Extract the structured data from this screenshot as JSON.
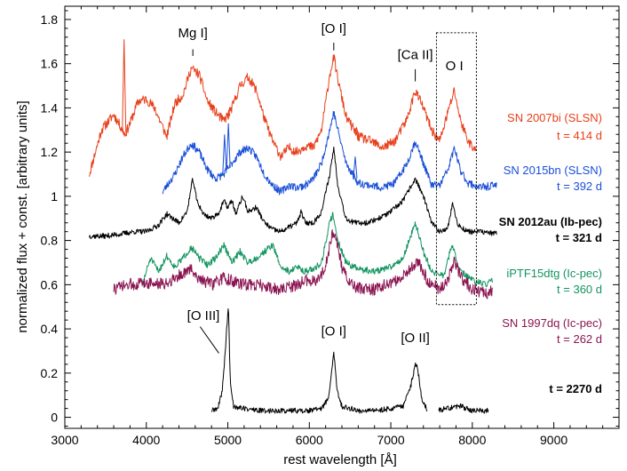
{
  "chart_data": {
    "type": "line",
    "title": "",
    "xlabel": "rest wavelength [Å]",
    "ylabel": "normalized flux + const. [arbitrary units]",
    "xlim": [
      3000,
      9800
    ],
    "ylim": [
      -0.05,
      1.86
    ],
    "x_ticks": [
      3000,
      4000,
      5000,
      6000,
      7000,
      8000,
      9000
    ],
    "y_ticks": [
      0,
      0.2,
      0.4,
      0.6,
      0.8,
      1,
      1.2,
      1.4,
      1.6,
      1.8
    ],
    "x_tick_labels": [
      "3000",
      "4000",
      "5000",
      "6000",
      "7000",
      "8000",
      "9000"
    ],
    "y_tick_labels": [
      "0",
      "0.2",
      "0.4",
      "0.6",
      "0.8",
      "1",
      "1.2",
      "1.4",
      "1.6",
      "1.8"
    ],
    "series": [
      {
        "name": "SN 2007bi (SLSN)",
        "label_line1": "SN 2007bi (SLSN)",
        "label_line2": "t = 414 d",
        "color": "#e8401c",
        "bold": false,
        "seed": 11,
        "noise": 0.022,
        "points": [
          [
            3300,
            1.1
          ],
          [
            3450,
            1.3
          ],
          [
            3600,
            1.37
          ],
          [
            3740,
            1.28
          ],
          [
            3800,
            1.33
          ],
          [
            3900,
            1.43
          ],
          [
            4000,
            1.44
          ],
          [
            4100,
            1.4
          ],
          [
            4250,
            1.27
          ],
          [
            4350,
            1.42
          ],
          [
            4450,
            1.46
          ],
          [
            4550,
            1.58
          ],
          [
            4650,
            1.55
          ],
          [
            4750,
            1.43
          ],
          [
            4850,
            1.38
          ],
          [
            4950,
            1.34
          ],
          [
            5050,
            1.4
          ],
          [
            5150,
            1.5
          ],
          [
            5250,
            1.54
          ],
          [
            5350,
            1.48
          ],
          [
            5450,
            1.35
          ],
          [
            5550,
            1.25
          ],
          [
            5650,
            1.18
          ],
          [
            5750,
            1.22
          ],
          [
            5850,
            1.2
          ],
          [
            5950,
            1.23
          ],
          [
            6050,
            1.22
          ],
          [
            6150,
            1.3
          ],
          [
            6250,
            1.55
          ],
          [
            6300,
            1.63
          ],
          [
            6350,
            1.53
          ],
          [
            6450,
            1.36
          ],
          [
            6600,
            1.27
          ],
          [
            6750,
            1.25
          ],
          [
            6900,
            1.22
          ],
          [
            7050,
            1.25
          ],
          [
            7200,
            1.35
          ],
          [
            7300,
            1.48
          ],
          [
            7400,
            1.4
          ],
          [
            7500,
            1.3
          ],
          [
            7600,
            1.25
          ],
          [
            7700,
            1.38
          ],
          [
            7780,
            1.48
          ],
          [
            7850,
            1.35
          ],
          [
            7950,
            1.25
          ],
          [
            8050,
            1.2
          ]
        ],
        "spikes": [
          [
            3727,
            1.71
          ],
          [
            4100,
            1.4
          ],
          [
            5005,
            1.35
          ],
          [
            6580,
            1.31
          ]
        ]
      },
      {
        "name": "SN 2015bn (SLSN)",
        "label_line1": "SN 2015bn (SLSN)",
        "label_line2": "t = 392 d",
        "color": "#1a4fd8",
        "bold": false,
        "seed": 23,
        "noise": 0.018,
        "points": [
          [
            4200,
            1.02
          ],
          [
            4350,
            1.1
          ],
          [
            4450,
            1.18
          ],
          [
            4550,
            1.24
          ],
          [
            4650,
            1.2
          ],
          [
            4750,
            1.12
          ],
          [
            4850,
            1.08
          ],
          [
            4950,
            1.1
          ],
          [
            5050,
            1.15
          ],
          [
            5150,
            1.2
          ],
          [
            5250,
            1.22
          ],
          [
            5350,
            1.18
          ],
          [
            5450,
            1.1
          ],
          [
            5550,
            1.05
          ],
          [
            5650,
            1.02
          ],
          [
            5750,
            1.05
          ],
          [
            5850,
            1.04
          ],
          [
            5950,
            1.05
          ],
          [
            6050,
            1.08
          ],
          [
            6150,
            1.15
          ],
          [
            6250,
            1.3
          ],
          [
            6300,
            1.38
          ],
          [
            6350,
            1.3
          ],
          [
            6450,
            1.15
          ],
          [
            6600,
            1.06
          ],
          [
            6750,
            1.05
          ],
          [
            6900,
            1.04
          ],
          [
            7050,
            1.06
          ],
          [
            7200,
            1.15
          ],
          [
            7300,
            1.25
          ],
          [
            7400,
            1.15
          ],
          [
            7500,
            1.05
          ],
          [
            7600,
            1.05
          ],
          [
            7700,
            1.12
          ],
          [
            7780,
            1.22
          ],
          [
            7850,
            1.12
          ],
          [
            7950,
            1.06
          ],
          [
            8100,
            1.04
          ],
          [
            8300,
            1.05
          ]
        ],
        "spikes": [
          [
            4960,
            1.28
          ],
          [
            5007,
            1.33
          ],
          [
            6563,
            1.18
          ]
        ]
      },
      {
        "name": "SN 2012au (Ib-pec)",
        "label_line1": "SN 2012au (Ib-pec)",
        "label_line2": "t =  321 d",
        "color": "#000000",
        "bold": true,
        "seed": 37,
        "noise": 0.012,
        "points": [
          [
            3300,
            0.82
          ],
          [
            3500,
            0.82
          ],
          [
            3700,
            0.83
          ],
          [
            3850,
            0.84
          ],
          [
            4000,
            0.84
          ],
          [
            4150,
            0.87
          ],
          [
            4250,
            0.92
          ],
          [
            4400,
            0.88
          ],
          [
            4500,
            0.93
          ],
          [
            4570,
            1.08
          ],
          [
            4620,
            0.98
          ],
          [
            4700,
            0.92
          ],
          [
            4800,
            0.9
          ],
          [
            4900,
            0.93
          ],
          [
            4950,
            0.98
          ],
          [
            5000,
            0.95
          ],
          [
            5050,
            0.98
          ],
          [
            5100,
            0.92
          ],
          [
            5180,
            1.0
          ],
          [
            5250,
            0.93
          ],
          [
            5350,
            0.95
          ],
          [
            5450,
            0.88
          ],
          [
            5550,
            0.85
          ],
          [
            5650,
            0.84
          ],
          [
            5750,
            0.86
          ],
          [
            5850,
            0.88
          ],
          [
            5900,
            0.93
          ],
          [
            5950,
            0.88
          ],
          [
            6050,
            0.88
          ],
          [
            6150,
            0.93
          ],
          [
            6250,
            1.1
          ],
          [
            6300,
            1.22
          ],
          [
            6350,
            1.05
          ],
          [
            6450,
            0.9
          ],
          [
            6550,
            0.88
          ],
          [
            6700,
            0.88
          ],
          [
            6850,
            0.9
          ],
          [
            7000,
            0.93
          ],
          [
            7150,
            0.98
          ],
          [
            7300,
            1.08
          ],
          [
            7400,
            1.0
          ],
          [
            7500,
            0.88
          ],
          [
            7600,
            0.84
          ],
          [
            7700,
            0.86
          ],
          [
            7760,
            0.97
          ],
          [
            7820,
            0.87
          ],
          [
            7950,
            0.84
          ],
          [
            8100,
            0.84
          ],
          [
            8300,
            0.83
          ]
        ],
        "spikes": []
      },
      {
        "name": "iPTF15dtg (Ic-pec)",
        "label_line1": "iPTF15dtg (Ic-pec)",
        "label_line2": "t = 360 d",
        "color": "#139460",
        "bold": false,
        "seed": 51,
        "noise": 0.015,
        "points": [
          [
            3950,
            0.6
          ],
          [
            4050,
            0.72
          ],
          [
            4150,
            0.66
          ],
          [
            4250,
            0.73
          ],
          [
            4350,
            0.68
          ],
          [
            4450,
            0.72
          ],
          [
            4550,
            0.77
          ],
          [
            4650,
            0.72
          ],
          [
            4750,
            0.69
          ],
          [
            4850,
            0.72
          ],
          [
            4950,
            0.78
          ],
          [
            5050,
            0.7
          ],
          [
            5150,
            0.75
          ],
          [
            5250,
            0.7
          ],
          [
            5350,
            0.72
          ],
          [
            5450,
            0.75
          ],
          [
            5550,
            0.78
          ],
          [
            5650,
            0.68
          ],
          [
            5750,
            0.66
          ],
          [
            5850,
            0.68
          ],
          [
            5950,
            0.66
          ],
          [
            6050,
            0.67
          ],
          [
            6150,
            0.7
          ],
          [
            6250,
            0.88
          ],
          [
            6290,
            0.92
          ],
          [
            6350,
            0.8
          ],
          [
            6450,
            0.7
          ],
          [
            6600,
            0.67
          ],
          [
            6800,
            0.66
          ],
          [
            7000,
            0.68
          ],
          [
            7150,
            0.72
          ],
          [
            7300,
            0.88
          ],
          [
            7400,
            0.75
          ],
          [
            7500,
            0.66
          ],
          [
            7650,
            0.64
          ],
          [
            7750,
            0.78
          ],
          [
            7850,
            0.66
          ],
          [
            8000,
            0.62
          ],
          [
            8150,
            0.6
          ],
          [
            8250,
            0.62
          ]
        ],
        "spikes": []
      },
      {
        "name": "SN 1997dq (Ic-pec)",
        "label_line1": "SN 1997dq (Ic-pec)",
        "label_line2": "t = 262 d",
        "color": "#8b1552",
        "bold": false,
        "seed": 73,
        "noise": 0.028,
        "points": [
          [
            3600,
            0.58
          ],
          [
            3800,
            0.6
          ],
          [
            4000,
            0.61
          ],
          [
            4200,
            0.6
          ],
          [
            4400,
            0.64
          ],
          [
            4550,
            0.67
          ],
          [
            4650,
            0.63
          ],
          [
            4800,
            0.6
          ],
          [
            4950,
            0.63
          ],
          [
            5100,
            0.61
          ],
          [
            5250,
            0.6
          ],
          [
            5400,
            0.6
          ],
          [
            5550,
            0.58
          ],
          [
            5700,
            0.58
          ],
          [
            5850,
            0.6
          ],
          [
            5950,
            0.62
          ],
          [
            6100,
            0.62
          ],
          [
            6200,
            0.68
          ],
          [
            6280,
            0.83
          ],
          [
            6320,
            0.82
          ],
          [
            6400,
            0.68
          ],
          [
            6500,
            0.6
          ],
          [
            6650,
            0.58
          ],
          [
            6800,
            0.58
          ],
          [
            6950,
            0.6
          ],
          [
            7100,
            0.62
          ],
          [
            7250,
            0.68
          ],
          [
            7350,
            0.7
          ],
          [
            7450,
            0.62
          ],
          [
            7600,
            0.58
          ],
          [
            7700,
            0.62
          ],
          [
            7780,
            0.72
          ],
          [
            7850,
            0.64
          ],
          [
            8000,
            0.58
          ],
          [
            8150,
            0.56
          ],
          [
            8250,
            0.57
          ]
        ],
        "spikes": []
      },
      {
        "name": "t = 2270 d",
        "label_line1": "",
        "label_line2": "t = 2270 d",
        "color": "#000000",
        "bold": true,
        "seed": 89,
        "noise": 0.012,
        "points": [
          [
            4800,
            0.03
          ],
          [
            4880,
            0.04
          ],
          [
            4930,
            0.12
          ],
          [
            4960,
            0.25
          ],
          [
            4990,
            0.42
          ],
          [
            5007,
            0.51
          ],
          [
            5030,
            0.16
          ],
          [
            5070,
            0.05
          ],
          [
            5200,
            0.04
          ],
          [
            5400,
            0.03
          ],
          [
            5600,
            0.03
          ],
          [
            5800,
            0.03
          ],
          [
            6000,
            0.03
          ],
          [
            6150,
            0.04
          ],
          [
            6240,
            0.09
          ],
          [
            6300,
            0.3
          ],
          [
            6340,
            0.12
          ],
          [
            6400,
            0.05
          ],
          [
            6600,
            0.03
          ],
          [
            6800,
            0.03
          ],
          [
            7000,
            0.04
          ],
          [
            7150,
            0.05
          ],
          [
            7250,
            0.15
          ],
          [
            7300,
            0.24
          ],
          [
            7330,
            0.22
          ],
          [
            7380,
            0.08
          ],
          [
            7450,
            0.03
          ],
          [
            7550,
            0.03
          ],
          [
            7700,
            0.04
          ],
          [
            7850,
            0.05
          ],
          [
            8000,
            0.03
          ],
          [
            8200,
            0.03
          ]
        ],
        "spikes": [],
        "gap": [
          7450,
          7580
        ]
      }
    ],
    "annotations": [
      {
        "text": "Mg I]",
        "x": 4571,
        "y": 1.72,
        "tick": [
          1.665,
          1.635
        ]
      },
      {
        "text": "[O I]",
        "x": 6300,
        "y": 1.74,
        "tick": [
          1.695,
          1.66
        ]
      },
      {
        "text": "[Ca II]",
        "x": 7300,
        "y": 1.62,
        "tick": [
          1.575,
          1.52
        ]
      },
      {
        "text": "O I",
        "x": 7780,
        "y": 1.57,
        "tick": null
      },
      {
        "text": "[O III]",
        "x": 4700,
        "y": 0.44,
        "tick": null
      },
      {
        "text": "[O I]",
        "x": 6300,
        "y": 0.37,
        "tick": null
      },
      {
        "text": "[O II]",
        "x": 7300,
        "y": 0.34,
        "tick": null
      }
    ],
    "box": {
      "x0": 7560,
      "x1": 8050,
      "y0": 0.51,
      "y1": 1.74
    }
  }
}
